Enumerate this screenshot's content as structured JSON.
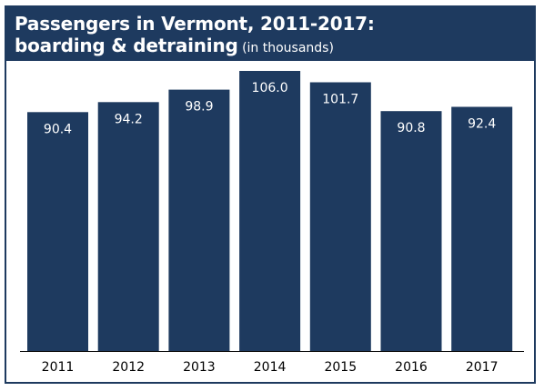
{
  "header": {
    "title_line1": "Passengers in Vermont, 2011-2017:",
    "title_line2": "boarding & detraining",
    "subtitle": "(in thousands)"
  },
  "colors": {
    "bar": "#1e3a5f",
    "header_bg": "#1e3a5f",
    "value_text": "#ffffff",
    "axis": "#000000"
  },
  "chart_data": {
    "type": "bar",
    "title": "Passengers in Vermont, 2011-2017: boarding & detraining (in thousands)",
    "categories": [
      "2011",
      "2012",
      "2013",
      "2014",
      "2015",
      "2016",
      "2017"
    ],
    "values": [
      90.4,
      94.2,
      98.9,
      106.0,
      101.7,
      90.8,
      92.4
    ],
    "value_labels": [
      "90.4",
      "94.2",
      "98.9",
      "106.0",
      "101.7",
      "90.8",
      "92.4"
    ],
    "xlabel": "",
    "ylabel": "",
    "ylim": [
      0,
      106.0
    ],
    "grid": false,
    "legend": "none"
  }
}
